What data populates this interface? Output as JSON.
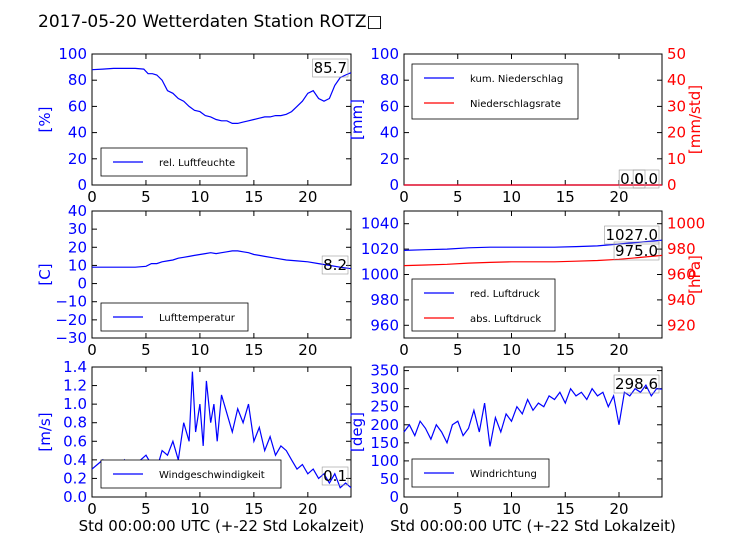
{
  "figure_title": "2017-05-20 Wetterdaten Station ROTZ□",
  "chart_data": [
    {
      "type": "line",
      "panel": "humidity",
      "ylabel": "[%]",
      "xlim": [
        0,
        24
      ],
      "ylim": [
        0,
        100
      ],
      "xticks": [
        "0",
        "5",
        "10",
        "15",
        "20"
      ],
      "yticks": [
        "0",
        "20",
        "40",
        "60",
        "80",
        "100"
      ],
      "value_label": "85.7",
      "legend": [
        "rel. Luftfeuchte"
      ],
      "legend_position": "lower-left",
      "series": [
        {
          "name": "rel. Luftfeuchte",
          "color": "#0000ff",
          "x": [
            0,
            1,
            2,
            3,
            4,
            4.8,
            5.2,
            5.6,
            6,
            6.5,
            7,
            7.5,
            8,
            8.5,
            9,
            9.5,
            10,
            10.5,
            11,
            11.5,
            12,
            12.5,
            13,
            13.5,
            14,
            14.5,
            15,
            15.5,
            16,
            16.5,
            17,
            17.5,
            18,
            18.5,
            19,
            19.5,
            20,
            20.5,
            21,
            21.5,
            22,
            22.5,
            23,
            23.5,
            24
          ],
          "y": [
            88,
            88.5,
            89,
            89,
            89,
            88.5,
            85,
            85,
            84,
            80,
            72,
            70,
            66,
            64,
            60,
            57,
            56,
            53,
            52,
            50,
            49,
            49,
            47,
            47,
            48,
            49,
            50,
            51,
            52,
            52,
            53,
            53,
            54,
            56,
            60,
            64,
            70,
            72,
            66,
            64,
            66,
            76,
            82,
            84,
            85.7
          ]
        }
      ]
    },
    {
      "type": "line",
      "panel": "precipitation",
      "ylabel": "[mm]",
      "y2label": "[mm/std]",
      "xlim": [
        0,
        24
      ],
      "ylim": [
        0,
        100
      ],
      "y2lim": [
        0,
        50
      ],
      "xticks": [
        "0",
        "5",
        "10",
        "15",
        "20"
      ],
      "yticks": [
        "0",
        "20",
        "40",
        "60",
        "80",
        "100"
      ],
      "y2ticks": [
        "0",
        "10",
        "20",
        "30",
        "40",
        "50"
      ],
      "value_label": "0.0",
      "value_label_2": "0.0",
      "legend": [
        "kum. Niederschlag",
        "Niederschlagsrate"
      ],
      "legend_position": "upper-left",
      "series": [
        {
          "name": "kum. Niederschlag",
          "color": "#0000ff",
          "axis": "left",
          "x": [
            0,
            24
          ],
          "y": [
            0,
            0
          ]
        },
        {
          "name": "Niederschlagsrate",
          "color": "#ff0000",
          "axis": "right",
          "x": [
            0,
            24
          ],
          "y": [
            0,
            0
          ]
        }
      ]
    },
    {
      "type": "line",
      "panel": "temperature",
      "ylabel": "[C]",
      "xlim": [
        0,
        24
      ],
      "ylim": [
        -30,
        40
      ],
      "xticks": [
        "0",
        "5",
        "10",
        "15",
        "20"
      ],
      "yticks": [
        "−30",
        "−20",
        "−10",
        "0",
        "10",
        "20",
        "30",
        "40"
      ],
      "value_label": "8.2",
      "legend": [
        "Lufttemperatur"
      ],
      "legend_position": "lower-left",
      "series": [
        {
          "name": "Lufttemperatur",
          "color": "#0000ff",
          "x": [
            0,
            1,
            2,
            3,
            4,
            5,
            5.5,
            6,
            6.5,
            7,
            7.5,
            8,
            8.5,
            9,
            9.5,
            10,
            10.5,
            11,
            11.5,
            12,
            12.5,
            13,
            13.5,
            14,
            14.5,
            15,
            15.5,
            16,
            17,
            18,
            19,
            20,
            21,
            22,
            23,
            24
          ],
          "y": [
            9,
            9,
            9,
            9,
            9,
            9.5,
            11,
            11,
            12,
            12.5,
            13,
            14,
            14.5,
            15,
            15.5,
            16,
            16.5,
            17,
            16.5,
            17,
            17.5,
            18,
            18,
            17.5,
            17,
            16,
            15.5,
            15,
            14,
            13,
            12.5,
            12,
            11,
            10,
            9,
            8.2
          ]
        }
      ]
    },
    {
      "type": "line",
      "panel": "pressure",
      "ylabel": "",
      "y2label": "[hPa]",
      "xlim": [
        0,
        24
      ],
      "ylim": [
        950,
        1050
      ],
      "y2lim": [
        910,
        1010
      ],
      "xticks": [
        "0",
        "5",
        "10",
        "15",
        "20"
      ],
      "yticks": [
        "960",
        "980",
        "1000",
        "1020",
        "1040"
      ],
      "y2ticks": [
        "920",
        "940",
        "960",
        "980",
        "1000"
      ],
      "value_label": "1027.0",
      "value_label_2": "975.0",
      "legend": [
        "red. Luftdruck",
        "abs. Luftdruck"
      ],
      "legend_position": "lower-left",
      "series": [
        {
          "name": "red. Luftdruck",
          "color": "#0000ff",
          "axis": "left",
          "x": [
            0,
            2,
            4,
            6,
            8,
            10,
            12,
            14,
            16,
            18,
            20,
            22,
            24
          ],
          "y": [
            1019,
            1019.5,
            1020,
            1021,
            1021.5,
            1021.5,
            1021.5,
            1021.5,
            1022,
            1022.5,
            1024,
            1025.5,
            1027
          ]
        },
        {
          "name": "abs. Luftdruck",
          "color": "#ff0000",
          "axis": "right",
          "x": [
            0,
            2,
            4,
            6,
            8,
            10,
            12,
            14,
            16,
            18,
            20,
            22,
            24
          ],
          "y": [
            967,
            967.5,
            968,
            969,
            969.5,
            970,
            970,
            970,
            970.5,
            971,
            972,
            973.5,
            975
          ]
        }
      ]
    },
    {
      "type": "line",
      "panel": "wind_speed",
      "ylabel": "[m/s]",
      "xlabel": "Std 00:00:00 UTC (+-22 Std Lokalzeit)",
      "xlim": [
        0,
        24
      ],
      "ylim": [
        0,
        1.4
      ],
      "xticks": [
        "0",
        "5",
        "10",
        "15",
        "20"
      ],
      "yticks": [
        "0.0",
        "0.2",
        "0.4",
        "0.6",
        "0.8",
        "1.0",
        "1.2",
        "1.4"
      ],
      "value_label": "0.1",
      "legend": [
        "Windgeschwindigkeit"
      ],
      "legend_position": "lower-left",
      "series": [
        {
          "name": "Windgeschwindigkeit",
          "color": "#0000ff",
          "x": [
            0,
            0.5,
            1,
            1.5,
            2,
            2.5,
            3,
            3.5,
            4,
            4.5,
            5,
            5.5,
            6,
            6.5,
            7,
            7.5,
            8,
            8.5,
            9,
            9.3,
            9.6,
            10,
            10.3,
            10.6,
            11,
            11.3,
            11.6,
            12,
            12.5,
            13,
            13.5,
            14,
            14.5,
            15,
            15.5,
            16,
            16.5,
            17,
            17.5,
            18,
            18.5,
            19,
            19.5,
            20,
            20.5,
            21,
            21.5,
            22,
            22.5,
            23,
            23.5,
            24
          ],
          "y": [
            0.3,
            0.35,
            0.4,
            0.25,
            0.35,
            0.3,
            0.4,
            0.3,
            0.35,
            0.4,
            0.45,
            0.35,
            0.3,
            0.5,
            0.45,
            0.6,
            0.4,
            0.8,
            0.6,
            1.35,
            0.7,
            1.0,
            0.55,
            1.25,
            0.8,
            1.0,
            0.6,
            1.1,
            0.9,
            0.7,
            0.95,
            0.8,
            1.0,
            0.6,
            0.75,
            0.5,
            0.65,
            0.45,
            0.55,
            0.5,
            0.4,
            0.3,
            0.35,
            0.25,
            0.3,
            0.2,
            0.25,
            0.15,
            0.25,
            0.1,
            0.15,
            0.1
          ]
        }
      ]
    },
    {
      "type": "line",
      "panel": "wind_direction",
      "ylabel": "[deg]",
      "xlabel": "Std 00:00:00 UTC (+-22 Std Lokalzeit)",
      "xlim": [
        0,
        24
      ],
      "ylim": [
        0,
        360
      ],
      "xticks": [
        "0",
        "5",
        "10",
        "15",
        "20"
      ],
      "yticks": [
        "0",
        "50",
        "100",
        "150",
        "200",
        "250",
        "300",
        "350"
      ],
      "value_label": "298.6",
      "legend": [
        "Windrichtung"
      ],
      "legend_position": "lower-left",
      "series": [
        {
          "name": "Windrichtung",
          "color": "#0000ff",
          "x": [
            0,
            0.5,
            1,
            1.5,
            2,
            2.5,
            3,
            3.5,
            4,
            4.5,
            5,
            5.5,
            6,
            6.5,
            7,
            7.5,
            8,
            8.5,
            9,
            9.5,
            10,
            10.5,
            11,
            11.5,
            12,
            12.5,
            13,
            13.5,
            14,
            14.5,
            15,
            15.5,
            16,
            16.5,
            17,
            17.5,
            18,
            18.5,
            19,
            19.5,
            20,
            20.5,
            21,
            21.5,
            22,
            22.5,
            23,
            23.5,
            24
          ],
          "y": [
            180,
            200,
            170,
            210,
            190,
            160,
            200,
            180,
            150,
            200,
            210,
            170,
            190,
            240,
            180,
            260,
            140,
            220,
            180,
            230,
            210,
            250,
            230,
            270,
            240,
            260,
            250,
            280,
            270,
            290,
            260,
            300,
            280,
            290,
            270,
            300,
            280,
            290,
            250,
            280,
            200,
            290,
            280,
            300,
            290,
            310,
            280,
            300,
            298.6
          ]
        }
      ]
    }
  ]
}
